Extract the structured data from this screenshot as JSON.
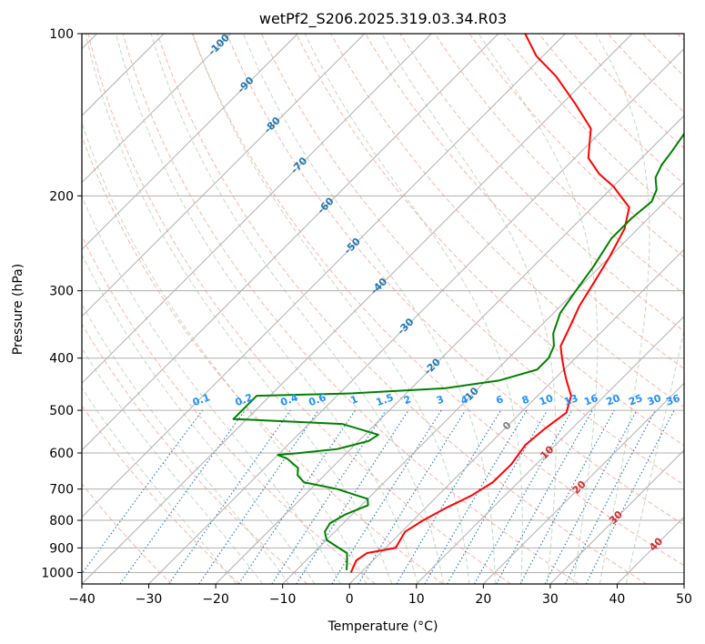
{
  "chart_data": {
    "type": "line",
    "subtype": "skew-t log-p diagram",
    "title": "wetPf2_S206.2025.319.03.34.R03",
    "xlabel": "Temperature (°C)",
    "ylabel": "Pressure (hPa)",
    "xlim": [
      -40,
      50
    ],
    "ylim": [
      1050,
      100
    ],
    "y_scale": "log",
    "x_ticks": [
      "−40",
      "−30",
      "−20",
      "−10",
      "0",
      "10",
      "20",
      "30",
      "40",
      "50"
    ],
    "x_tick_values": [
      -40,
      -30,
      -20,
      -10,
      0,
      10,
      20,
      30,
      40,
      50
    ],
    "y_ticks": [
      "100",
      "200",
      "300",
      "400",
      "500",
      "600",
      "700",
      "800",
      "900",
      "1000"
    ],
    "y_tick_values": [
      100,
      200,
      300,
      400,
      500,
      600,
      700,
      800,
      900,
      1000
    ],
    "grid": true,
    "colors": {
      "temperature": "#ff0000",
      "dewpoint": "#008000",
      "isotherm": "#b0b0b0",
      "dry_adiabat": "#fa8072",
      "moist_adiabat": "#8fbc8f",
      "mixing_ratio": "#1f77b4",
      "mixing_ratio_label": "#1e90ff",
      "isotherm_label_cold": "#1f77b4",
      "isotherm_label_warm": "#d62728",
      "isotherm_label_zero": "#808080"
    },
    "series": [
      {
        "key": "temperature",
        "points": [
          [
            -1.5,
            1000
          ],
          [
            -2.5,
            950
          ],
          [
            -2.0,
            920
          ],
          [
            1.5,
            900
          ],
          [
            1.0,
            870
          ],
          [
            0.5,
            840
          ],
          [
            1.5,
            800
          ],
          [
            3.0,
            760
          ],
          [
            5.0,
            720
          ],
          [
            6.2,
            680
          ],
          [
            6.3,
            630
          ],
          [
            5.5,
            580
          ],
          [
            6.0,
            540
          ],
          [
            6.8,
            505
          ],
          [
            5.0,
            470
          ],
          [
            2.0,
            440
          ],
          [
            0.0,
            420
          ],
          [
            -2.0,
            400
          ],
          [
            -4.0,
            380
          ],
          [
            -5.5,
            350
          ],
          [
            -7.2,
            320
          ],
          [
            -8.5,
            290
          ],
          [
            -10.0,
            260
          ],
          [
            -12.0,
            230
          ],
          [
            -14.5,
            210
          ],
          [
            -17.5,
            200
          ],
          [
            -20.0,
            192
          ],
          [
            -24.0,
            182
          ],
          [
            -28.0,
            170
          ],
          [
            -32.0,
            150
          ],
          [
            -38.0,
            135
          ],
          [
            -45.0,
            120
          ],
          [
            -51.0,
            110
          ],
          [
            -56.0,
            100
          ]
        ]
      },
      {
        "key": "dewpoint",
        "points": [
          [
            -2.5,
            990
          ],
          [
            -3.5,
            960
          ],
          [
            -5.0,
            920
          ],
          [
            -7.0,
            900
          ],
          [
            -10.0,
            870
          ],
          [
            -11.5,
            840
          ],
          [
            -12.0,
            810
          ],
          [
            -11.0,
            780
          ],
          [
            -9.0,
            750
          ],
          [
            -10.0,
            730
          ],
          [
            -12.0,
            720
          ],
          [
            -16.0,
            700
          ],
          [
            -22.0,
            680
          ],
          [
            -24.0,
            660
          ],
          [
            -25.0,
            640
          ],
          [
            -28.0,
            615
          ],
          [
            -30.0,
            605
          ],
          [
            -27.0,
            600
          ],
          [
            -22.0,
            590
          ],
          [
            -18.5,
            570
          ],
          [
            -18.0,
            555
          ],
          [
            -25.0,
            530
          ],
          [
            -40.0,
            520
          ],
          [
            -42.0,
            519
          ],
          [
            -42.0,
            470
          ],
          [
            -28.0,
            465
          ],
          [
            -15.0,
            455
          ],
          [
            -8.0,
            440
          ],
          [
            -4.0,
            420
          ],
          [
            -4.0,
            400
          ],
          [
            -5.0,
            380
          ],
          [
            -7.0,
            360
          ],
          [
            -9.0,
            330
          ],
          [
            -10.0,
            300
          ],
          [
            -11.0,
            270
          ],
          [
            -12.5,
            240
          ],
          [
            -12.5,
            220
          ],
          [
            -12.0,
            205
          ],
          [
            -13.0,
            195
          ],
          [
            -15.0,
            185
          ],
          [
            -16.0,
            175
          ],
          [
            -16.5,
            165
          ],
          [
            -17.5,
            150
          ],
          [
            -20.0,
            130
          ],
          [
            -24.0,
            115
          ],
          [
            -30.0,
            100
          ]
        ]
      }
    ],
    "isotherm_labels": {
      "cold": [
        "-100",
        "-90",
        "-80",
        "-70",
        "-60",
        "-50",
        "-40",
        "-30",
        "-20",
        "-10"
      ],
      "cold_values": [
        -100,
        -90,
        -80,
        -70,
        -60,
        -50,
        -40,
        -30,
        -20,
        -10
      ],
      "zero": "0",
      "warm": [
        "10",
        "20",
        "30",
        "40"
      ],
      "warm_values": [
        10,
        20,
        30,
        40
      ]
    },
    "mixing_ratio_labels": [
      "0.1",
      "0.2",
      "0.4",
      "0.6",
      "1",
      "1.5",
      "2",
      "3",
      "4",
      "6",
      "8",
      "10",
      "13",
      "16",
      "20",
      "25",
      "30",
      "36"
    ],
    "mixing_ratio_values": [
      0.1,
      0.2,
      0.4,
      0.6,
      1,
      1.5,
      2,
      3,
      4,
      6,
      8,
      10,
      13,
      16,
      20,
      25,
      30,
      36
    ],
    "mixing_ratio_label_pressure": 500
  }
}
